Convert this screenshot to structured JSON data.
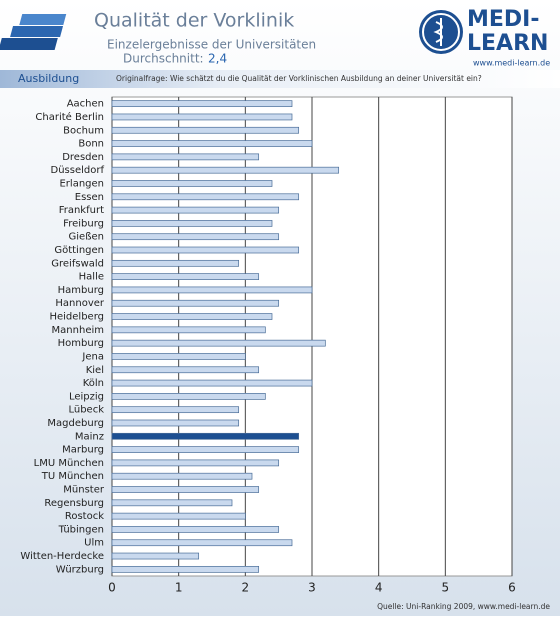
{
  "chart_data": {
    "type": "hbar",
    "title": "Qualität der Vorklinik",
    "subtitle": "Einzelergebnisse der Universitäten",
    "average_label": "Durchschnitt:",
    "average": "2,4",
    "section": "Ausbildung",
    "question": "Originalfrage: Wie schätzt du die Qualität der Vorklinischen Ausbildung an deiner Universität ein?",
    "source": "Quelle: Uni-Ranking 2009, www.medi-learn.de",
    "logo": {
      "line1": "MEDI-",
      "line2": "LEARN",
      "url": "www.medi-learn.de"
    },
    "categories": [
      "Aachen",
      "Charité Berlin",
      "Bochum",
      "Bonn",
      "Dresden",
      "Düsseldorf",
      "Erlangen",
      "Essen",
      "Frankfurt",
      "Freiburg",
      "Gießen",
      "Göttingen",
      "Greifswald",
      "Halle",
      "Hamburg",
      "Hannover",
      "Heidelberg",
      "Mannheim",
      "Homburg",
      "Jena",
      "Kiel",
      "Köln",
      "Leipzig",
      "Lübeck",
      "Magdeburg",
      "Mainz",
      "Marburg",
      "LMU München",
      "TU München",
      "Münster",
      "Regensburg",
      "Rostock",
      "Tübingen",
      "Ulm",
      "Witten-Herdecke",
      "Würzburg"
    ],
    "values": [
      2.7,
      2.7,
      2.8,
      3.0,
      2.2,
      3.4,
      2.4,
      2.8,
      2.5,
      2.4,
      2.5,
      2.8,
      1.9,
      2.2,
      3.0,
      2.5,
      2.4,
      2.3,
      3.2,
      2.0,
      2.2,
      3.0,
      2.3,
      1.9,
      1.9,
      2.8,
      2.8,
      2.5,
      2.1,
      2.2,
      1.8,
      2.0,
      2.5,
      2.7,
      1.3,
      2.2
    ],
    "colors": [
      "#c9d9ee",
      "#c9d9ee",
      "#c9d9ee",
      "#c9d9ee",
      "#c9d9ee",
      "#c9d9ee",
      "#c9d9ee",
      "#c9d9ee",
      "#c9d9ee",
      "#c9d9ee",
      "#c9d9ee",
      "#c9d9ee",
      "#c9d9ee",
      "#c9d9ee",
      "#c9d9ee",
      "#c9d9ee",
      "#c9d9ee",
      "#c9d9ee",
      "#c9d9ee",
      "#c9d9ee",
      "#c9d9ee",
      "#c9d9ee",
      "#c9d9ee",
      "#c9d9ee",
      "#c9d9ee",
      "#1d4f91",
      "#c9d9ee",
      "#c9d9ee",
      "#c9d9ee",
      "#c9d9ee",
      "#c9d9ee",
      "#c9d9ee",
      "#c9d9ee",
      "#c9d9ee",
      "#c9d9ee",
      "#c9d9ee"
    ],
    "xlim": [
      0,
      6
    ],
    "xticks": [
      0,
      1,
      2,
      3,
      4,
      5,
      6
    ],
    "grid": true
  }
}
